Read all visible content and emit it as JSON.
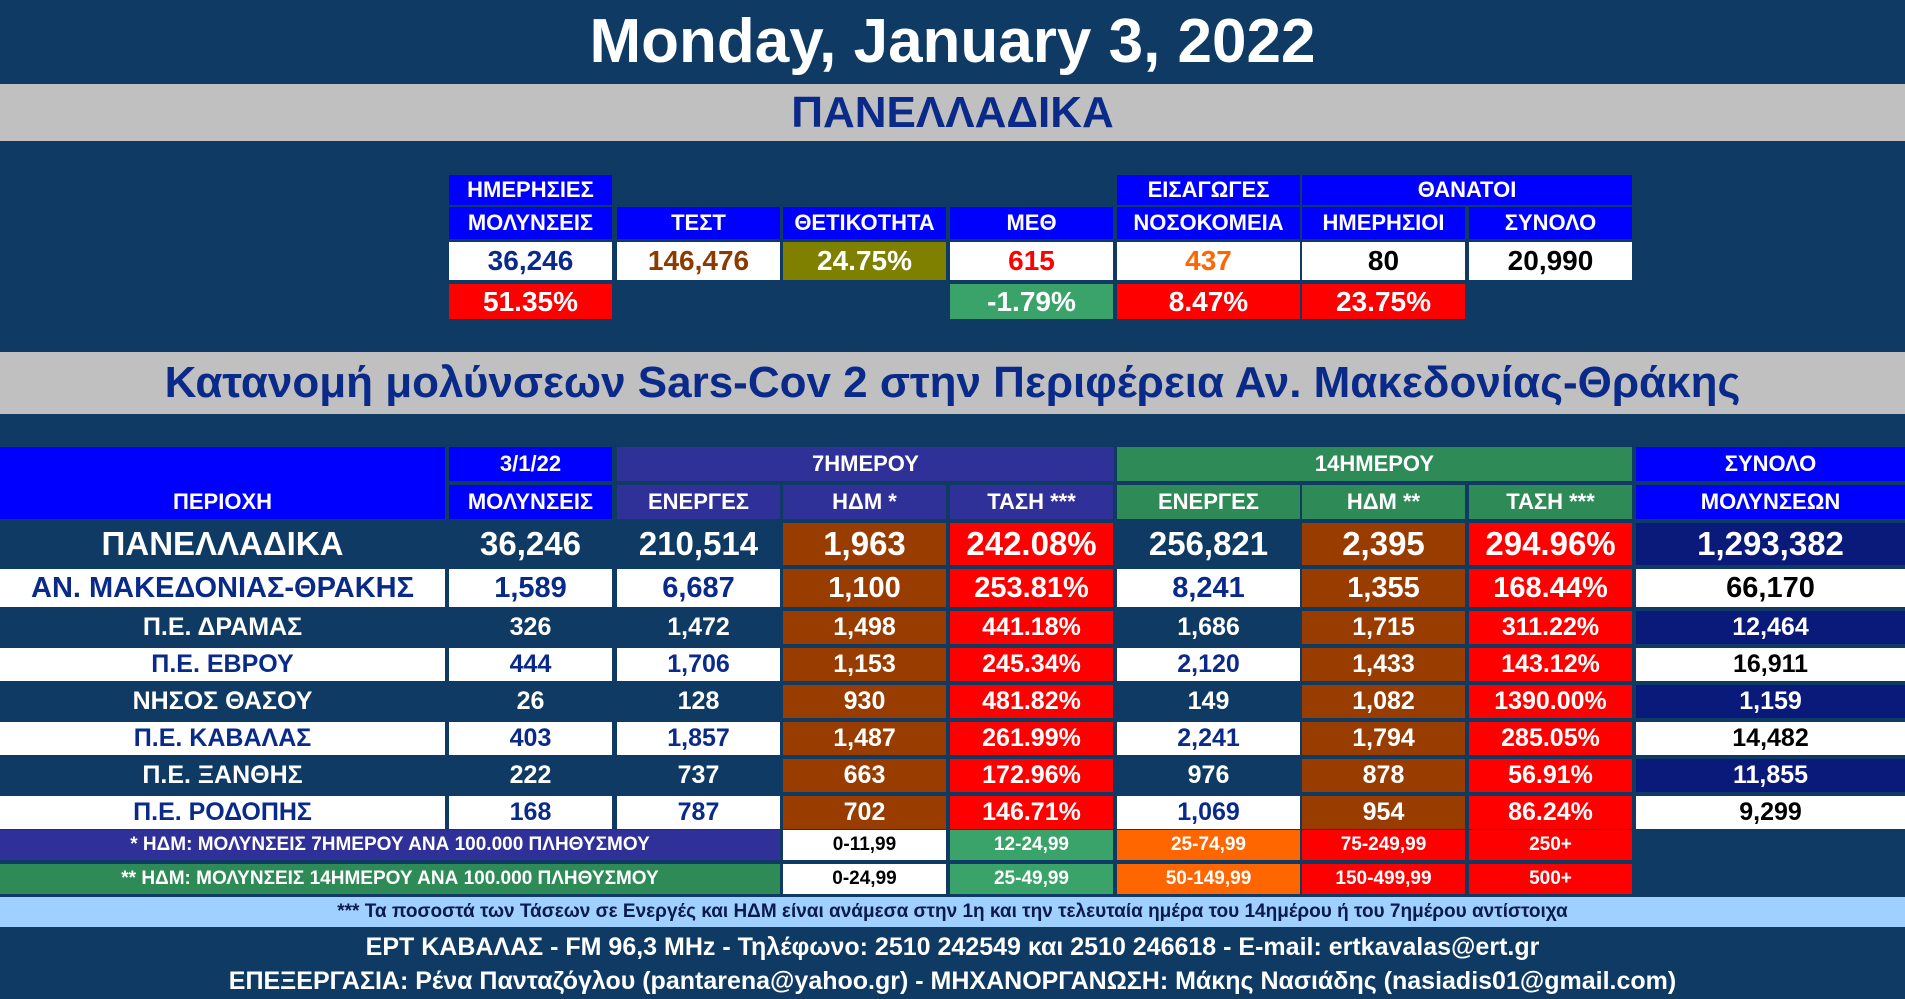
{
  "date_title": "Monday, January 3, 2022",
  "national_title": "ΠΑΝΕΛΛΑΔΙΚΑ",
  "national": {
    "headers": {
      "daily_infections": [
        "ΗΜΕΡΗΣΙΕΣ",
        "ΜΟΛΥΝΣΕΙΣ"
      ],
      "tests": "ΤΕΣΤ",
      "positivity": "ΘΕΤΙΚΟΤΗΤΑ",
      "icu": "ΜΕΘ",
      "admissions": [
        "ΕΙΣΑΓΩΓΕΣ",
        "ΝΟΣΟΚΟΜΕΙΑ"
      ],
      "deaths": "ΘΑΝΑΤΟΙ",
      "deaths_daily": "ΗΜΕΡΗΣΙΟΙ",
      "deaths_total": "ΣΥΝΟΛΟ"
    },
    "values": {
      "daily_infections": "36,246",
      "tests": "146,476",
      "positivity": "24.75%",
      "icu": "615",
      "admissions": "437",
      "deaths_daily": "80",
      "deaths_total": "20,990"
    },
    "changes": {
      "daily_infections": "51.35%",
      "icu": "-1.79%",
      "admissions": "8.47%",
      "deaths_daily": "23.75%"
    }
  },
  "region_title": "Κατανομή μολύνσεων Sars-Cov 2 στην Περιφέρεια Αν. Μακεδονίας-Θράκης",
  "table": {
    "group_headers": {
      "date": "3/1/22",
      "seven_day": "7ΗΜΕΡΟΥ",
      "fourteen_day": "14ΗΜΕΡΟΥ",
      "total": "ΣΥΝΟΛΟ"
    },
    "columns": {
      "area": "ΠΕΡΙΟΧΗ",
      "infections": "ΜΟΛΥΝΣΕΙΣ",
      "active7": "ΕΝΕΡΓΕΣ",
      "hdm7": "ΗΔΜ *",
      "trend7": "ΤΑΣΗ ***",
      "active14": "ΕΝΕΡΓΕΣ",
      "hdm14": "ΗΔΜ **",
      "trend14": "ΤΑΣΗ ***",
      "total": "ΜΟΛΥΝΣΕΩΝ"
    },
    "rows": [
      {
        "area": "ΠΑΝΕΛΛΑΔΙΚΑ",
        "infections": "36,246",
        "active7": "210,514",
        "hdm7": "1,963",
        "trend7": "242.08%",
        "active14": "256,821",
        "hdm14": "2,395",
        "trend14": "294.96%",
        "total": "1,293,382"
      },
      {
        "area": "ΑΝ. ΜΑΚΕΔΟΝΙΑΣ-ΘΡΑΚΗΣ",
        "infections": "1,589",
        "active7": "6,687",
        "hdm7": "1,100",
        "trend7": "253.81%",
        "active14": "8,241",
        "hdm14": "1,355",
        "trend14": "168.44%",
        "total": "66,170"
      },
      {
        "area": "Π.Ε. ΔΡΑΜΑΣ",
        "infections": "326",
        "active7": "1,472",
        "hdm7": "1,498",
        "trend7": "441.18%",
        "active14": "1,686",
        "hdm14": "1,715",
        "trend14": "311.22%",
        "total": "12,464"
      },
      {
        "area": "Π.Ε. ΕΒΡΟΥ",
        "infections": "444",
        "active7": "1,706",
        "hdm7": "1,153",
        "trend7": "245.34%",
        "active14": "2,120",
        "hdm14": "1,433",
        "trend14": "143.12%",
        "total": "16,911"
      },
      {
        "area": "ΝΗΣΟΣ ΘΑΣΟΥ",
        "infections": "26",
        "active7": "128",
        "hdm7": "930",
        "trend7": "481.82%",
        "active14": "149",
        "hdm14": "1,082",
        "trend14": "1390.00%",
        "total": "1,159"
      },
      {
        "area": "Π.Ε. ΚΑΒΑΛΑΣ",
        "infections": "403",
        "active7": "1,857",
        "hdm7": "1,487",
        "trend7": "261.99%",
        "active14": "2,241",
        "hdm14": "1,794",
        "trend14": "285.05%",
        "total": "14,482"
      },
      {
        "area": "Π.Ε. ΞΑΝΘΗΣ",
        "infections": "222",
        "active7": "737",
        "hdm7": "663",
        "trend7": "172.96%",
        "active14": "976",
        "hdm14": "878",
        "trend14": "56.91%",
        "total": "11,855"
      },
      {
        "area": "Π.Ε. ΡΟΔΟΠΗΣ",
        "infections": "168",
        "active7": "787",
        "hdm7": "702",
        "trend7": "146.71%",
        "active14": "1,069",
        "hdm14": "954",
        "trend14": "86.24%",
        "total": "9,299"
      }
    ]
  },
  "legend": {
    "hdm7_label": "* ΗΔΜ: ΜΟΛΥΝΣΕΙΣ 7ΗΜΕΡΟΥ ΑΝΑ 100.000 ΠΛΗΘΥΣΜΟΥ",
    "hdm7_ranges": [
      "0-11,99",
      "12-24,99",
      "25-74,99",
      "75-249,99",
      "250+"
    ],
    "hdm14_label": "** ΗΔΜ: ΜΟΛΥΝΣΕΙΣ 14ΗΜΕΡΟΥ ΑΝΑ 100.000 ΠΛΗΘΥΣΜΟΥ",
    "hdm14_ranges": [
      "0-24,99",
      "25-49,99",
      "50-149,99",
      "150-499,99",
      "500+"
    ],
    "range_colors": [
      "#ffffff",
      "#3aa36a",
      "#ff6600",
      "#ff0000",
      "#ff0000"
    ]
  },
  "footnote": "*** Τα ποσοστά των Τάσεων σε Ενεργές και ΗΔΜ είναι ανάμεσα στην 1η και την τελευταία ημέρα του 14ημέρου ή του 7ημέρου αντίστοιχα",
  "credits": {
    "line1": "ΕΡΤ ΚΑΒΑΛΑΣ - FM 96,3 MHz - Τηλέφωνο:  2510 242549 και 2510 246618 - E-mail: ertkavalas@ert.gr",
    "line2": "ΕΠΕΞΕΡΓΑΣΙΑ: Ρένα Πανταζόγλου (pantarena@yahoo.gr) - ΜΗΧΑΝΟΡΓΑΝΩΣΗ: Μάκης Νασιάδης (nasiadis01@gmail.com)"
  },
  "colors": {
    "background": "#0e3a63",
    "header_blue": "#0000ff",
    "band_gray": "#c0c0c0",
    "red": "#ff0000",
    "green": "#3aa36a",
    "brown": "#993c00",
    "navy": "#0a1a7a",
    "olive": "#808000"
  }
}
